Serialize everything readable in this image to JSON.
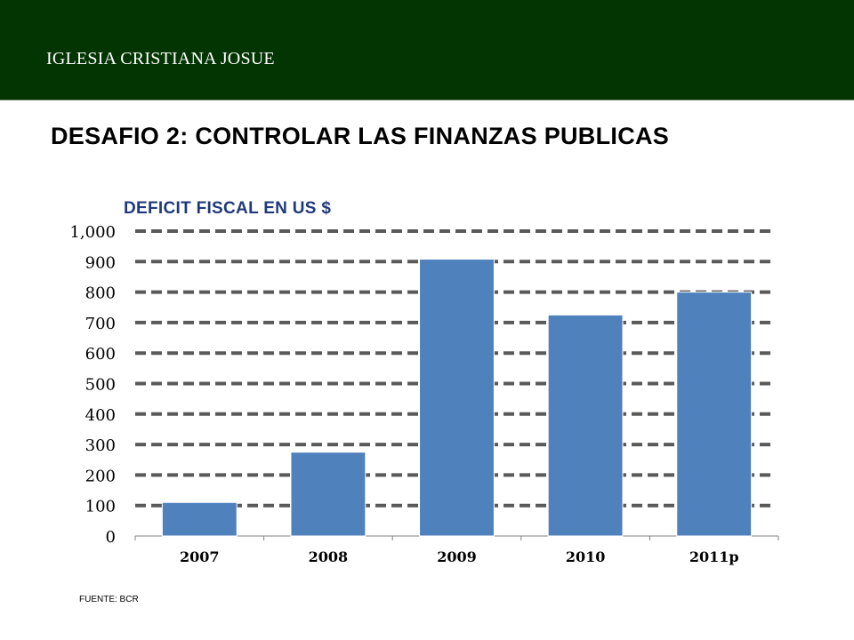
{
  "header": {
    "org_name": "IGLESIA CRISTIANA JOSUE",
    "band_color": "#023502"
  },
  "slide": {
    "title": "DESAFIO 2: CONTROLAR  LAS FINANZAS PUBLICAS",
    "source": "FUENTE: BCR"
  },
  "chart_data": {
    "type": "bar",
    "title": "DEFICIT FISCAL EN US $",
    "xlabel": "",
    "ylabel": "",
    "categories": [
      "2007",
      "2008",
      "2009",
      "2010",
      "2011p"
    ],
    "values": [
      110,
      275,
      908,
      725,
      800
    ],
    "ylim": [
      0,
      1000
    ],
    "yticks": [
      "0",
      "100",
      "200",
      "300",
      "400",
      "500",
      "600",
      "700",
      "800",
      "900",
      "1,000"
    ],
    "grid": true,
    "legend": "none",
    "bar_color": "#4f81bd",
    "grid_color": "#595959"
  }
}
